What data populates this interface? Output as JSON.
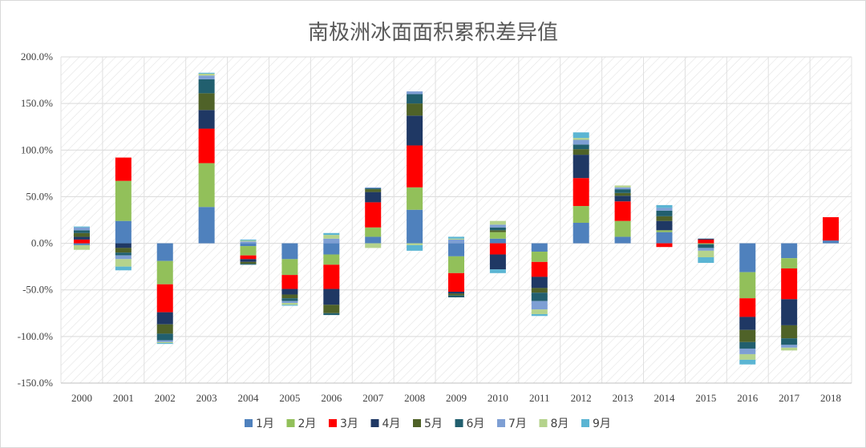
{
  "chart_data": {
    "type": "bar",
    "stacked": true,
    "title": "南极洲冰面面积累积差异值",
    "xlabel": "",
    "ylabel": "",
    "ylim": [
      -1.5,
      2.0
    ],
    "y_ticks": [
      "-150.0%",
      "-100.0%",
      "-50.0%",
      "0.0%",
      "50.0%",
      "100.0%",
      "150.0%",
      "200.0%"
    ],
    "y_tick_values": [
      -1.5,
      -1.0,
      -0.5,
      0.0,
      0.5,
      1.0,
      1.5,
      2.0
    ],
    "legend_position": "bottom",
    "categories": [
      "2000",
      "2001",
      "2002",
      "2003",
      "2004",
      "2005",
      "2006",
      "2007",
      "2008",
      "2009",
      "2010",
      "2011",
      "2012",
      "2013",
      "2014",
      "2015",
      "2016",
      "2017",
      "2018"
    ],
    "series": [
      {
        "name": "1月",
        "color": "#4f81bd",
        "values": [
          -0.02,
          0.24,
          -0.19,
          0.39,
          -0.03,
          -0.17,
          -0.12,
          0.07,
          0.36,
          -0.14,
          0.05,
          -0.09,
          0.22,
          0.07,
          0.12,
          0.0,
          -0.31,
          -0.16,
          0.03
        ]
      },
      {
        "name": "2月",
        "color": "#92c05a",
        "values": [
          0.0,
          0.43,
          -0.25,
          0.47,
          -0.1,
          -0.17,
          -0.11,
          0.1,
          0.24,
          -0.18,
          0.07,
          -0.11,
          0.18,
          0.17,
          0.02,
          -0.01,
          -0.28,
          -0.11,
          0.0
        ]
      },
      {
        "name": "3月",
        "color": "#ff0000",
        "values": [
          0.04,
          0.25,
          -0.3,
          0.37,
          -0.04,
          -0.15,
          -0.26,
          0.27,
          0.45,
          -0.2,
          -0.12,
          -0.16,
          0.3,
          0.21,
          -0.04,
          0.04,
          -0.2,
          -0.33,
          0.25
        ]
      },
      {
        "name": "4月",
        "color": "#1f3864",
        "values": [
          0.03,
          -0.05,
          -0.13,
          0.2,
          -0.03,
          -0.06,
          -0.17,
          0.11,
          0.32,
          -0.02,
          -0.16,
          -0.12,
          0.25,
          0.06,
          0.1,
          0.01,
          -0.14,
          -0.28,
          0.0
        ]
      },
      {
        "name": "5月",
        "color": "#4f6228",
        "values": [
          0.04,
          -0.05,
          -0.1,
          0.18,
          -0.02,
          -0.04,
          -0.09,
          0.03,
          0.13,
          -0.02,
          0.02,
          -0.05,
          0.06,
          0.03,
          0.05,
          0.0,
          -0.13,
          -0.14,
          0.0
        ]
      },
      {
        "name": "6月",
        "color": "#215f6e",
        "values": [
          0.03,
          -0.03,
          -0.07,
          0.15,
          -0.01,
          -0.03,
          -0.02,
          0.01,
          0.1,
          -0.02,
          0.03,
          -0.09,
          0.05,
          0.04,
          0.06,
          -0.04,
          -0.07,
          -0.07,
          0.0
        ]
      },
      {
        "name": "7月",
        "color": "#7e9fd4",
        "values": [
          0.03,
          -0.04,
          -0.02,
          0.04,
          0.02,
          -0.02,
          0.05,
          0.01,
          0.03,
          0.04,
          0.03,
          -0.09,
          0.05,
          0.02,
          0.03,
          -0.03,
          -0.06,
          -0.03,
          0.0
        ]
      },
      {
        "name": "8月",
        "color": "#b5d38c",
        "values": [
          -0.05,
          -0.08,
          -0.01,
          0.02,
          0.01,
          -0.02,
          0.04,
          -0.05,
          -0.02,
          0.01,
          0.04,
          -0.05,
          0.02,
          0.02,
          0.0,
          -0.07,
          -0.06,
          -0.03,
          0.0
        ]
      },
      {
        "name": "9月",
        "color": "#5bb5d3",
        "values": [
          0.01,
          -0.04,
          -0.01,
          0.01,
          0.01,
          -0.01,
          0.02,
          0.0,
          -0.06,
          0.02,
          -0.04,
          -0.02,
          0.06,
          0.0,
          0.03,
          -0.06,
          -0.05,
          0.0,
          0.0
        ]
      }
    ]
  }
}
